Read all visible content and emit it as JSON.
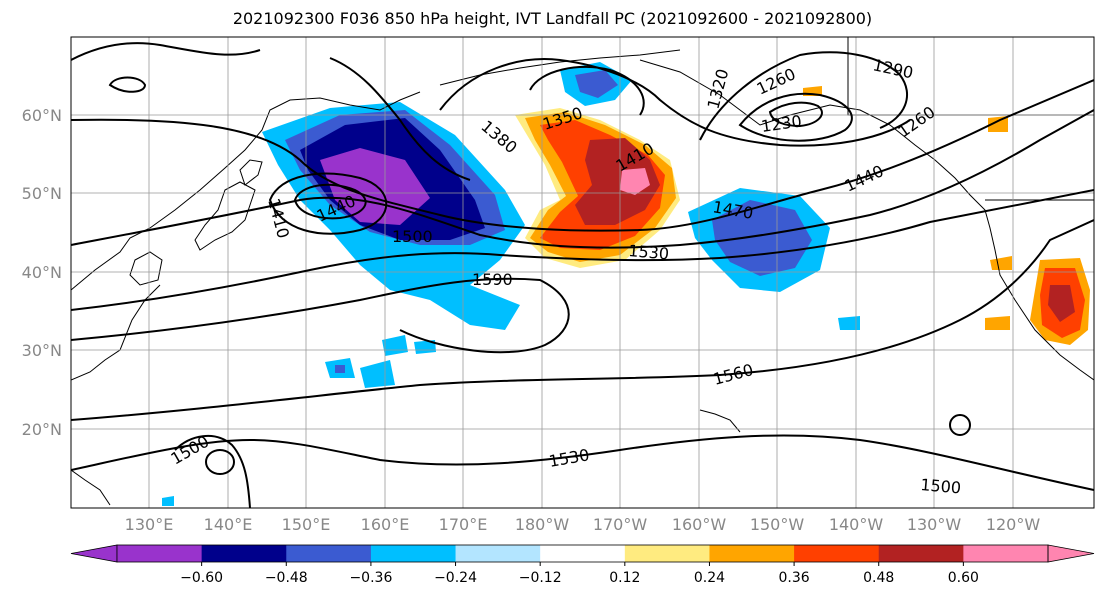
{
  "title": "2021092300 F036 850 hPa height, IVT Landfall PC (2021092600 - 2021092800)",
  "lat_labels": [
    "60°N",
    "50°N",
    "40°N",
    "30°N",
    "20°N"
  ],
  "lon_labels": [
    "130°E",
    "140°E",
    "150°E",
    "160°E",
    "170°E",
    "180°W",
    "170°W",
    "160°W",
    "150°W",
    "140°W",
    "130°W",
    "120°W"
  ],
  "contour_labels": [
    "1290",
    "1260",
    "1320",
    "1230",
    "1350",
    "1380",
    "1410",
    "1260",
    "1440",
    "1470",
    "1410",
    "1440",
    "1500",
    "1530",
    "1590",
    "1560",
    "1530",
    "1500",
    "1500"
  ],
  "colorbar": {
    "colors": [
      "#9933cc",
      "#00008b",
      "#3b5bd1",
      "#00bfff",
      "#b3e5ff",
      "#ffffff",
      "#ffeb80",
      "#ffa500",
      "#ff4000",
      "#b22222",
      "#ff85b0"
    ],
    "tick_labels": [
      "−0.60",
      "−0.48",
      "−0.36",
      "−0.24",
      "−0.12",
      "0.12",
      "0.24",
      "0.36",
      "0.48",
      "0.60"
    ]
  }
}
